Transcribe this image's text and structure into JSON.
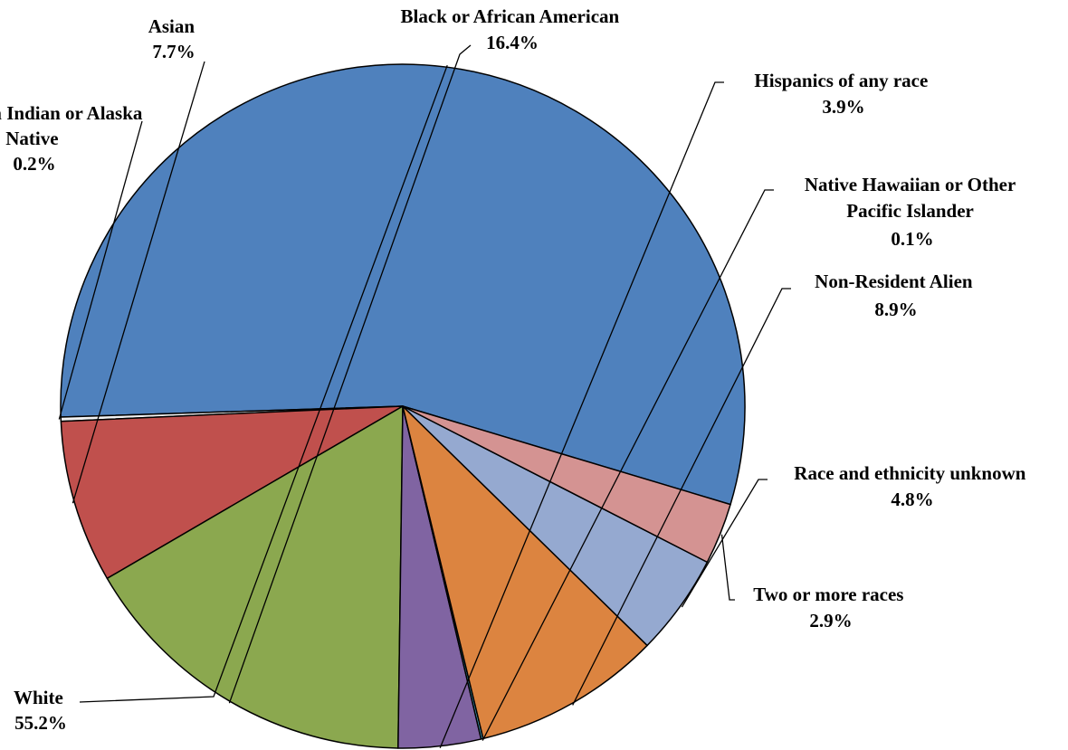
{
  "chart_data": {
    "type": "pie",
    "title": "",
    "slices": [
      {
        "label": "White",
        "pct": "55.2%",
        "value": 55.2,
        "color": "#4F81BD"
      },
      {
        "label": "American Indian or Alaska Native",
        "pct": "0.2%",
        "value": 0.2,
        "color": "#F2F2F2"
      },
      {
        "label": "Asian",
        "pct": "7.7%",
        "value": 7.7,
        "color": "#C0504D"
      },
      {
        "label": "Black or African American",
        "pct": "16.4%",
        "value": 16.4,
        "color": "#8BA84F"
      },
      {
        "label": "Hispanics of any race",
        "pct": "3.9%",
        "value": 3.9,
        "color": "#8064A2"
      },
      {
        "label": "Native Hawaiian or Other Pacific Islander",
        "pct": "0.1%",
        "value": 0.1,
        "color": "#4BACC6"
      },
      {
        "label": "Non-Resident Alien",
        "pct": "8.9%",
        "value": 8.9,
        "color": "#DC8440"
      },
      {
        "label": "Race and ethnicity unknown",
        "pct": "4.8%",
        "value": 4.8,
        "color": "#95A9D0"
      },
      {
        "label": "Two or more races",
        "pct": "2.9%",
        "value": 2.9,
        "color": "#D49392"
      }
    ]
  }
}
